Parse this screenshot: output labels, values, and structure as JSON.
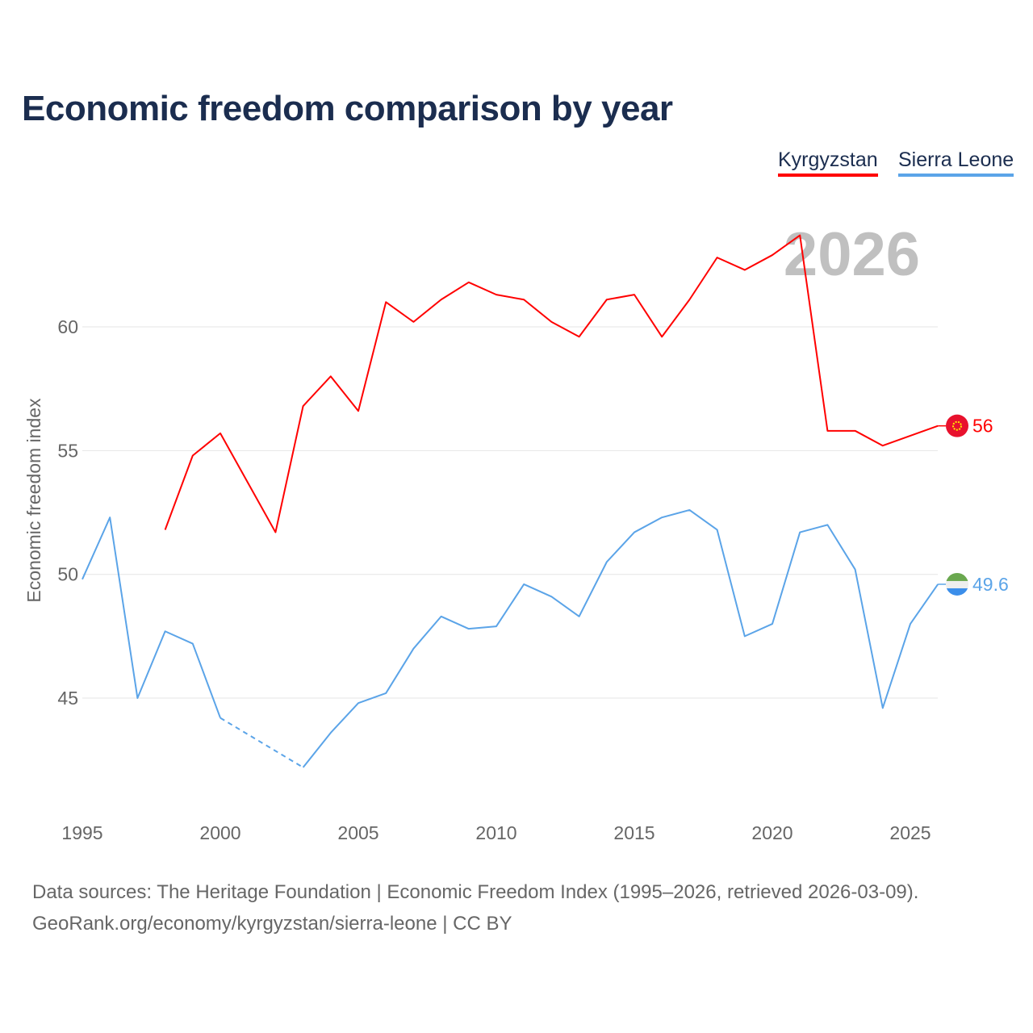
{
  "chart_data": {
    "type": "line",
    "title": "Economic freedom comparison by year",
    "xlabel": "",
    "ylabel": "Economic freedom index",
    "watermark_year": "2026",
    "xlim": [
      1995,
      2026
    ],
    "ylim": [
      41.5,
      64
    ],
    "yticks": [
      45,
      50,
      55,
      60
    ],
    "xticks": [
      1995,
      2000,
      2005,
      2010,
      2015,
      2020,
      2025
    ],
    "grid": true,
    "legend_position": "top-right",
    "x": [
      1995,
      1996,
      1997,
      1998,
      1999,
      2000,
      2001,
      2002,
      2003,
      2004,
      2005,
      2006,
      2007,
      2008,
      2009,
      2010,
      2011,
      2012,
      2013,
      2014,
      2015,
      2016,
      2017,
      2018,
      2019,
      2020,
      2021,
      2022,
      2023,
      2024,
      2025,
      2026
    ],
    "series": [
      {
        "name": "Kyrgyzstan",
        "color": "#ff0000",
        "end_label": "56",
        "values": [
          null,
          null,
          null,
          51.8,
          54.8,
          55.7,
          53.7,
          51.7,
          56.8,
          58.0,
          56.6,
          61.0,
          60.2,
          61.1,
          61.8,
          61.3,
          61.1,
          60.2,
          59.6,
          61.1,
          61.3,
          59.6,
          61.1,
          62.8,
          62.3,
          62.9,
          63.7,
          55.8,
          55.8,
          55.2,
          55.6,
          56.0
        ]
      },
      {
        "name": "Sierra Leone",
        "color": "#5ba4e8",
        "end_label": "49.6",
        "values": [
          49.8,
          52.3,
          45.0,
          47.7,
          47.2,
          44.2,
          null,
          null,
          42.2,
          43.6,
          44.8,
          45.2,
          47.0,
          48.3,
          47.8,
          47.9,
          49.6,
          49.1,
          48.3,
          50.5,
          51.7,
          52.3,
          52.6,
          51.8,
          47.5,
          48.0,
          51.7,
          52.0,
          50.2,
          44.6,
          48.0,
          49.6
        ]
      }
    ]
  },
  "footer": {
    "line1": "Data sources: The Heritage Foundation | Economic Freedom Index (1995–2026, retrieved 2026-03-09).",
    "line2": "GeoRank.org/economy/kyrgyzstan/sierra-leone | CC BY"
  }
}
